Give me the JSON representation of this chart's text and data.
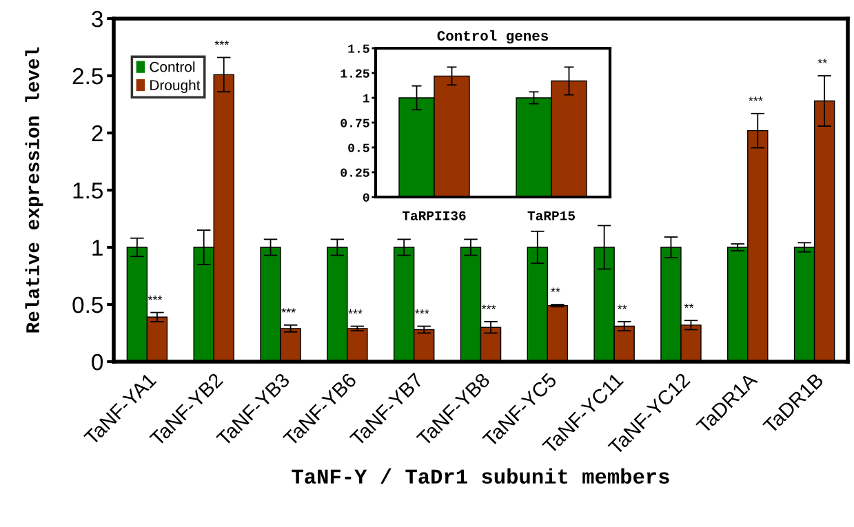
{
  "chart_data": [
    {
      "type": "bar",
      "xlabel": "TaNF-Y / TaDr1 subunit members",
      "ylabel": "Relative expression level",
      "categories": [
        "TaNF-YA1",
        "TaNF-YB2",
        "TaNF-YB3",
        "TaNF-YB6",
        "TaNF-YB7",
        "TaNF-YB8",
        "TaNF-YC5",
        "TaNF-YC11",
        "TaNF-YC12",
        "TaDR1A",
        "TaDR1B"
      ],
      "series": [
        {
          "name": "Control",
          "color": "#008000",
          "values": [
            1,
            1,
            1,
            1,
            1,
            1,
            1,
            1,
            1,
            1,
            1
          ],
          "errors": [
            0.08,
            0.15,
            0.07,
            0.07,
            0.07,
            0.07,
            0.14,
            0.19,
            0.09,
            0.03,
            0.04
          ]
        },
        {
          "name": "Drought",
          "color": "#993300",
          "values": [
            0.39,
            2.51,
            0.29,
            0.29,
            0.28,
            0.3,
            0.49,
            0.31,
            0.32,
            2.02,
            2.28
          ],
          "errors": [
            0.04,
            0.15,
            0.03,
            0.02,
            0.03,
            0.05,
            0.01,
            0.04,
            0.04,
            0.15,
            0.22
          ]
        }
      ],
      "ylim": [
        0,
        3
      ],
      "yticks": [
        0,
        0.5,
        1,
        1.5,
        2,
        2.5,
        3
      ],
      "legend": "top left",
      "grid": false,
      "annotations": [
        {
          "text": "***",
          "x": "TaNF-YA1",
          "y": 0.43
        },
        {
          "text": "***",
          "x": "TaNF-YB2",
          "y": 2.66
        },
        {
          "text": "***",
          "x": "TaNF-YB3",
          "y": 0.32
        },
        {
          "text": "***",
          "x": "TaNF-YB6",
          "y": 0.31
        },
        {
          "text": "***",
          "x": "TaNF-YB7",
          "y": 0.31
        },
        {
          "text": "***",
          "x": "TaNF-YB8",
          "y": 0.35
        },
        {
          "text": "**",
          "x": "TaNF-YC5",
          "y": 0.5
        },
        {
          "text": "**",
          "x": "TaNF-YC11",
          "y": 0.35
        },
        {
          "text": "**",
          "x": "TaNF-YC12",
          "y": 0.36
        },
        {
          "text": "***",
          "x": "TaDR1A",
          "y": 2.17
        },
        {
          "text": "**",
          "x": "TaDR1B",
          "y": 2.5
        }
      ]
    },
    {
      "type": "bar",
      "title": "Control genes",
      "categories": [
        "TaRPII36",
        "TaRP15"
      ],
      "series": [
        {
          "color": "#008000",
          "values": [
            1,
            1
          ],
          "errors": [
            0.12,
            0.06
          ]
        },
        {
          "color": "#993300",
          "values": [
            1.22,
            1.17
          ],
          "errors": [
            0.09,
            0.14
          ]
        }
      ],
      "ylim": [
        0,
        1.5
      ],
      "yticks": [
        0,
        0.25,
        0.5,
        0.75,
        1,
        1.25,
        1.5
      ],
      "grid": false,
      "legend": false
    }
  ]
}
